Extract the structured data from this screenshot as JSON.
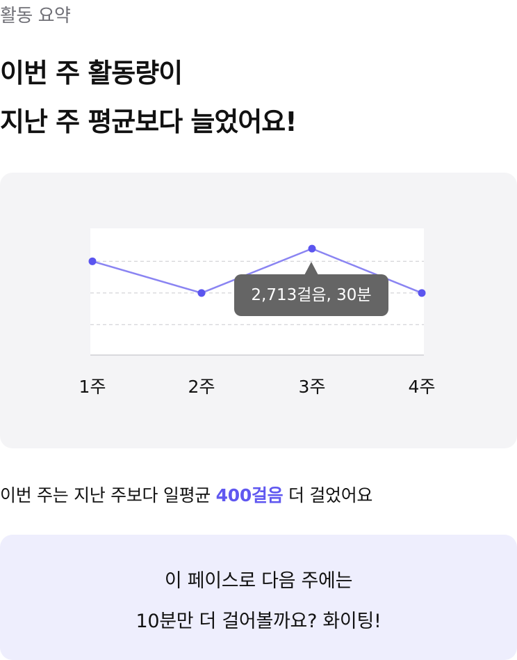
{
  "header": {
    "section_label": "활동 요약",
    "headline_line1": "이번 주 활동량이",
    "headline_line2": "지난 주 평균보다 늘었어요!"
  },
  "chart": {
    "tooltip": "2,713걸음, 30분",
    "highlighted_week": "3주",
    "colors": {
      "line": "#8a84f2",
      "point": "#5b55ef",
      "tooltip_bg": "#656565",
      "card_bg": "#f4f4f6"
    }
  },
  "chart_data": {
    "type": "line",
    "categories": [
      "1주",
      "2주",
      "3주",
      "4주"
    ],
    "values": [
      0.74,
      0.49,
      0.84,
      0.49
    ],
    "ylim": [
      0,
      1
    ],
    "gridlines": [
      0.49,
      0.74,
      0.24
    ],
    "grid": "dashed horizontal",
    "title": "",
    "xlabel": "",
    "ylabel": ""
  },
  "summary": {
    "prefix": "이번 주는 지난 주보다 일평균 ",
    "highlight": "400걸음",
    "suffix": " 더 걸었어요",
    "highlight_color": "#6058f0"
  },
  "cheer": {
    "line1": "이 페이스로 다음 주에는",
    "line2": "10분만 더 걸어볼까요? 화이팅!"
  }
}
